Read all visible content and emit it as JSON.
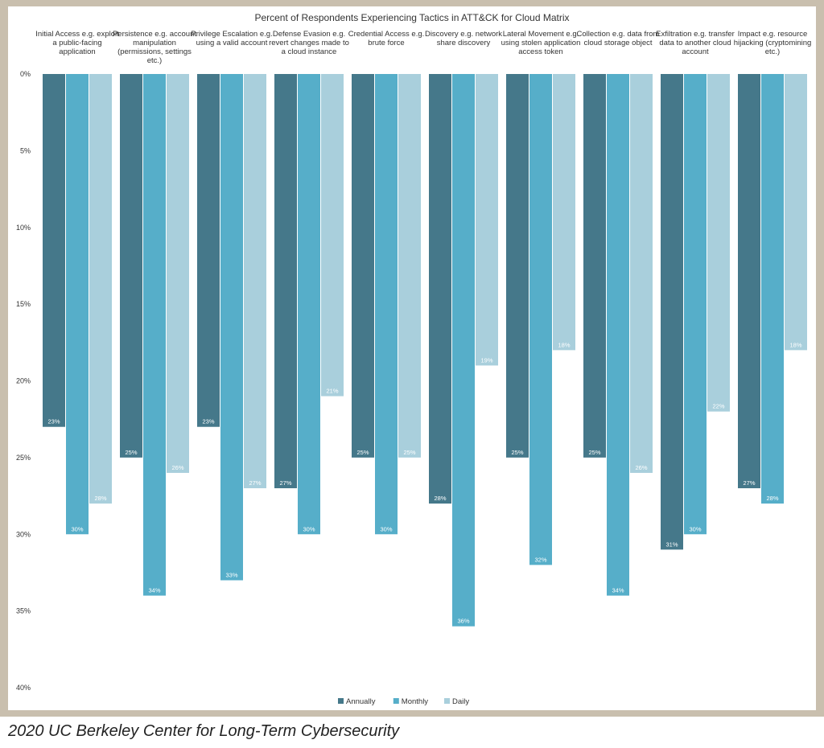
{
  "chart_data": {
    "type": "bar",
    "title": "Percent of Respondents Experiencing Tactics in ATT&CK for Cloud Matrix",
    "orientation": "vertical-downward",
    "categories": [
      [
        "Initial Access e.g. exploit",
        "a public-facing",
        "application"
      ],
      [
        "Persistence e.g. account",
        "manipulation",
        "(permissions, settings",
        "etc.)"
      ],
      [
        "Privilege Escalation e.g.",
        "using a valid account"
      ],
      [
        "Defense Evasion e.g.",
        "revert changes made to",
        "a cloud instance"
      ],
      [
        "Credential Access e.g.",
        "brute force"
      ],
      [
        "Discovery e.g. network",
        "share discovery"
      ],
      [
        "Lateral Movement e.g.",
        "using stolen application",
        "access token"
      ],
      [
        "Collection e.g. data from",
        "cloud storage object"
      ],
      [
        "Exfiltration e.g. transfer",
        "data to another cloud",
        "account"
      ],
      [
        "Impact e.g. resource",
        "hijacking (cryptomining",
        "etc.)"
      ]
    ],
    "series": [
      {
        "name": "Annually",
        "color": "#45788a",
        "values": [
          23,
          25,
          23,
          27,
          25,
          28,
          25,
          25,
          31,
          27
        ]
      },
      {
        "name": "Monthly",
        "color": "#56aec9",
        "values": [
          30,
          34,
          33,
          30,
          30,
          36,
          32,
          34,
          30,
          28
        ]
      },
      {
        "name": "Daily",
        "color": "#a9cfdc",
        "values": [
          28,
          26,
          27,
          21,
          25,
          19,
          18,
          26,
          22,
          18
        ]
      }
    ],
    "yticks": [
      "0%",
      "5%",
      "10%",
      "15%",
      "20%",
      "25%",
      "30%",
      "35%",
      "40%"
    ],
    "ylim": [
      0,
      40
    ],
    "value_suffix": "%",
    "legend_position": "bottom"
  },
  "caption": "2020 UC Berkeley Center for Long-Term Cybersecurity"
}
